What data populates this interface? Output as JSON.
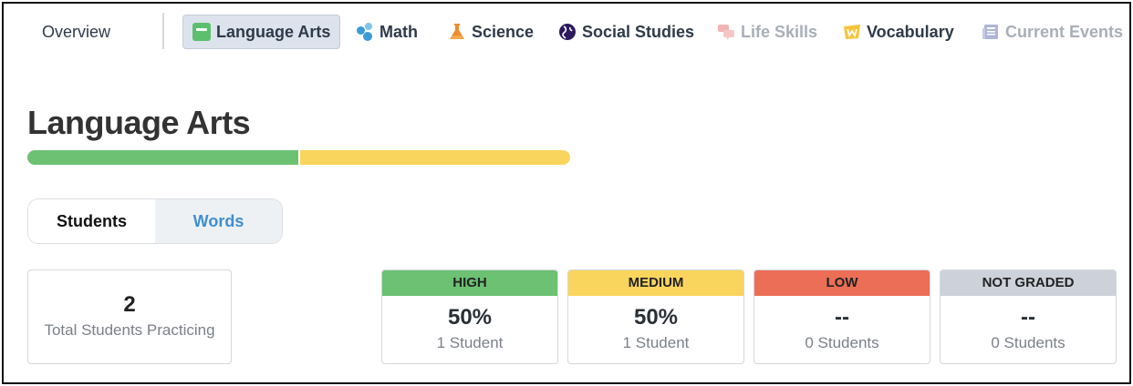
{
  "nav": {
    "overview": "Overview",
    "items": [
      {
        "label": "Language Arts",
        "icon": "book-icon",
        "active": true
      },
      {
        "label": "Math",
        "icon": "shapes-icon"
      },
      {
        "label": "Science",
        "icon": "flask-icon"
      },
      {
        "label": "Social Studies",
        "icon": "globe-icon"
      },
      {
        "label": "Life Skills",
        "icon": "chat-bubbles-icon",
        "muted": true
      },
      {
        "label": "Vocabulary",
        "icon": "vocabulary-icon"
      },
      {
        "label": "Current Events",
        "icon": "newspaper-icon",
        "muted": true
      }
    ]
  },
  "page": {
    "title": "Language Arts",
    "progress": [
      {
        "level": "high",
        "fraction": 0.5,
        "color": "#6cc173"
      },
      {
        "level": "medium",
        "fraction": 0.5,
        "color": "#f9d55d"
      }
    ]
  },
  "toggle": {
    "students": "Students",
    "words": "Words"
  },
  "summary": {
    "total_value": "2",
    "total_label": "Total Students Practicing"
  },
  "grades": [
    {
      "label": "HIGH",
      "color": "#6cc173",
      "percent": "50%",
      "count": "1 Student"
    },
    {
      "label": "MEDIUM",
      "color": "#f9d55d",
      "percent": "50%",
      "count": "1 Student"
    },
    {
      "label": "LOW",
      "color": "#ec6e57",
      "percent": "--",
      "count": "0 Students"
    },
    {
      "label": "NOT GRADED",
      "color": "#cdd2da",
      "percent": "--",
      "count": "0 Students"
    }
  ]
}
